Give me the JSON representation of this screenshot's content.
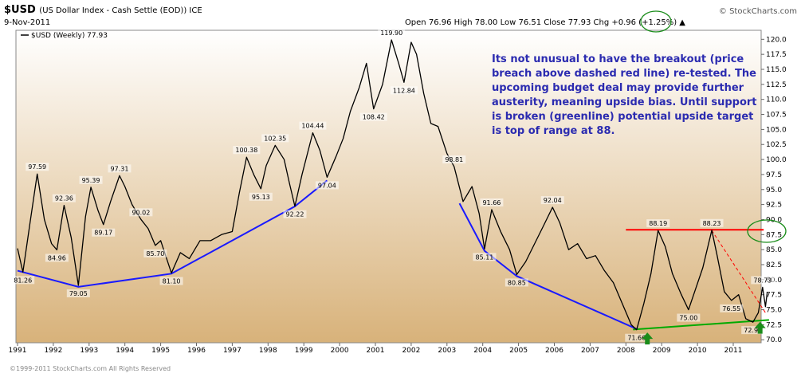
{
  "header": {
    "symbol": "$USD",
    "description": "(US Dollar Index - Cash Settle (EOD)) ICE",
    "date": "9-Nov-2011",
    "ohlc": "Open 76.96  High 78.00  Low 76.51  Close 77.93  Chg +0.96 (+1.25%) ▲",
    "brand": "© StockCharts.com"
  },
  "footer": {
    "copyright": "©1999-2011 StockCharts.com All Rights Reserved"
  },
  "chart_data": {
    "type": "line",
    "legend": "$USD (Weekly) 77.93",
    "ylim": [
      69.5,
      121.5
    ],
    "xlim": [
      1991.0,
      2012.2
    ],
    "x_ticks": [
      "1991",
      "1992",
      "1993",
      "1994",
      "1995",
      "1996",
      "1997",
      "1998",
      "1999",
      "2000",
      "2001",
      "2002",
      "2003",
      "2004",
      "2005",
      "2006",
      "2007",
      "2008",
      "2009",
      "2010",
      "2011"
    ],
    "y_ticks": [
      "70.0",
      "72.5",
      "75.0",
      "77.5",
      "80.0",
      "82.5",
      "85.0",
      "87.5",
      "90.0",
      "92.5",
      "95.0",
      "97.5",
      "100.0",
      "102.5",
      "105.0",
      "107.5",
      "110.0",
      "112.5",
      "115.0",
      "117.5",
      "120.0"
    ],
    "series": [
      {
        "points": [
          [
            1991.0,
            85.2
          ],
          [
            1991.15,
            81.26
          ],
          [
            1991.35,
            89.5
          ],
          [
            1991.55,
            97.59
          ],
          [
            1991.75,
            90.0
          ],
          [
            1991.95,
            86.0
          ],
          [
            1992.1,
            84.96
          ],
          [
            1992.3,
            92.36
          ],
          [
            1992.5,
            87.0
          ],
          [
            1992.7,
            79.05
          ],
          [
            1992.9,
            90.5
          ],
          [
            1993.05,
            95.39
          ],
          [
            1993.25,
            91.5
          ],
          [
            1993.4,
            89.17
          ],
          [
            1993.6,
            93.0
          ],
          [
            1993.85,
            97.31
          ],
          [
            1994.0,
            95.5
          ],
          [
            1994.2,
            92.5
          ],
          [
            1994.45,
            90.02
          ],
          [
            1994.65,
            88.5
          ],
          [
            1994.85,
            85.7
          ],
          [
            1995.0,
            86.5
          ],
          [
            1995.3,
            81.1
          ],
          [
            1995.55,
            84.5
          ],
          [
            1995.8,
            83.5
          ],
          [
            1996.1,
            86.5
          ],
          [
            1996.4,
            86.5
          ],
          [
            1996.7,
            87.5
          ],
          [
            1997.0,
            88.0
          ],
          [
            1997.2,
            94.5
          ],
          [
            1997.4,
            100.38
          ],
          [
            1997.6,
            97.5
          ],
          [
            1997.8,
            95.13
          ],
          [
            1997.95,
            99.0
          ],
          [
            1998.2,
            102.35
          ],
          [
            1998.45,
            100.0
          ],
          [
            1998.6,
            96.0
          ],
          [
            1998.75,
            92.22
          ],
          [
            1998.95,
            97.5
          ],
          [
            1999.25,
            104.44
          ],
          [
            1999.45,
            101.5
          ],
          [
            1999.65,
            97.04
          ],
          [
            1999.9,
            100.5
          ],
          [
            2000.1,
            103.5
          ],
          [
            2000.3,
            108.0
          ],
          [
            2000.55,
            112.0
          ],
          [
            2000.75,
            116.0
          ],
          [
            2000.95,
            108.42
          ],
          [
            2001.2,
            112.5
          ],
          [
            2001.45,
            119.9
          ],
          [
            2001.65,
            116.0
          ],
          [
            2001.8,
            112.84
          ],
          [
            2002.0,
            119.5
          ],
          [
            2002.15,
            117.5
          ],
          [
            2002.35,
            111.0
          ],
          [
            2002.55,
            106.0
          ],
          [
            2002.75,
            105.5
          ],
          [
            2003.0,
            101.0
          ],
          [
            2003.2,
            98.81
          ],
          [
            2003.45,
            93.0
          ],
          [
            2003.7,
            95.5
          ],
          [
            2003.9,
            91.0
          ],
          [
            2004.05,
            85.11
          ],
          [
            2004.25,
            91.66
          ],
          [
            2004.5,
            88.0
          ],
          [
            2004.75,
            85.0
          ],
          [
            2004.95,
            80.85
          ],
          [
            2005.2,
            83.0
          ],
          [
            2005.45,
            86.0
          ],
          [
            2005.7,
            89.0
          ],
          [
            2005.95,
            92.04
          ],
          [
            2006.15,
            89.5
          ],
          [
            2006.4,
            85.0
          ],
          [
            2006.65,
            86.0
          ],
          [
            2006.9,
            83.5
          ],
          [
            2007.15,
            84.0
          ],
          [
            2007.4,
            81.5
          ],
          [
            2007.65,
            79.5
          ],
          [
            2007.9,
            76.0
          ],
          [
            2008.15,
            72.5
          ],
          [
            2008.3,
            71.66
          ],
          [
            2008.5,
            76.0
          ],
          [
            2008.7,
            81.0
          ],
          [
            2008.9,
            88.19
          ],
          [
            2009.1,
            85.5
          ],
          [
            2009.3,
            81.0
          ],
          [
            2009.55,
            77.5
          ],
          [
            2009.75,
            75.0
          ],
          [
            2009.95,
            78.5
          ],
          [
            2010.15,
            82.0
          ],
          [
            2010.4,
            88.23
          ],
          [
            2010.55,
            84.0
          ],
          [
            2010.75,
            78.0
          ],
          [
            2010.95,
            76.55
          ],
          [
            2011.15,
            77.5
          ],
          [
            2011.35,
            73.5
          ],
          [
            2011.55,
            72.93
          ],
          [
            2011.7,
            74.5
          ],
          [
            2011.82,
            78.73
          ],
          [
            2011.9,
            75.5
          ],
          [
            2011.95,
            77.93
          ]
        ]
      }
    ],
    "point_labels": [
      {
        "x": 1991.15,
        "y": 81.26,
        "text": "81.26",
        "pos": "below"
      },
      {
        "x": 1991.55,
        "y": 97.59,
        "text": "97.59",
        "pos": "above"
      },
      {
        "x": 1992.1,
        "y": 84.96,
        "text": "84.96",
        "pos": "below"
      },
      {
        "x": 1992.3,
        "y": 92.36,
        "text": "92.36",
        "pos": "above"
      },
      {
        "x": 1992.7,
        "y": 79.05,
        "text": "79.05",
        "pos": "below"
      },
      {
        "x": 1993.05,
        "y": 95.39,
        "text": "95.39",
        "pos": "above"
      },
      {
        "x": 1993.4,
        "y": 89.17,
        "text": "89.17",
        "pos": "below"
      },
      {
        "x": 1993.85,
        "y": 97.31,
        "text": "97.31",
        "pos": "above"
      },
      {
        "x": 1994.45,
        "y": 90.02,
        "text": "90.02",
        "pos": "above"
      },
      {
        "x": 1994.85,
        "y": 85.7,
        "text": "85.70",
        "pos": "below"
      },
      {
        "x": 1995.3,
        "y": 81.1,
        "text": "81.10",
        "pos": "below"
      },
      {
        "x": 1997.4,
        "y": 100.38,
        "text": "100.38",
        "pos": "above"
      },
      {
        "x": 1997.8,
        "y": 95.13,
        "text": "95.13",
        "pos": "below"
      },
      {
        "x": 1998.2,
        "y": 102.35,
        "text": "102.35",
        "pos": "above"
      },
      {
        "x": 1998.75,
        "y": 92.22,
        "text": "92.22",
        "pos": "below"
      },
      {
        "x": 1999.25,
        "y": 104.44,
        "text": "104.44",
        "pos": "above"
      },
      {
        "x": 1999.65,
        "y": 97.04,
        "text": "97.04",
        "pos": "below"
      },
      {
        "x": 2000.95,
        "y": 108.42,
        "text": "108.42",
        "pos": "below"
      },
      {
        "x": 2001.45,
        "y": 119.9,
        "text": "119.90",
        "pos": "above"
      },
      {
        "x": 2001.8,
        "y": 112.84,
        "text": "112.84",
        "pos": "below"
      },
      {
        "x": 2003.2,
        "y": 98.81,
        "text": "98.81",
        "pos": "above"
      },
      {
        "x": 2004.05,
        "y": 85.11,
        "text": "85.11",
        "pos": "below"
      },
      {
        "x": 2004.25,
        "y": 91.66,
        "text": "91.66",
        "pos": "above"
      },
      {
        "x": 2004.95,
        "y": 80.85,
        "text": "80.85",
        "pos": "below"
      },
      {
        "x": 2005.95,
        "y": 92.04,
        "text": "92.04",
        "pos": "above"
      },
      {
        "x": 2008.3,
        "y": 71.66,
        "text": "71.66",
        "pos": "below"
      },
      {
        "x": 2008.9,
        "y": 88.19,
        "text": "88.19",
        "pos": "above"
      },
      {
        "x": 2009.75,
        "y": 75.0,
        "text": "75.00",
        "pos": "below"
      },
      {
        "x": 2010.4,
        "y": 88.23,
        "text": "88.23",
        "pos": "above"
      },
      {
        "x": 2010.95,
        "y": 76.55,
        "text": "76.55",
        "pos": "below"
      },
      {
        "x": 2011.55,
        "y": 72.93,
        "text": "72.93",
        "pos": "below"
      },
      {
        "x": 2011.82,
        "y": 78.73,
        "text": "78.73",
        "pos": "above"
      }
    ],
    "annotation": [
      "Its not unusual to have the breakout (price",
      "breach above dashed red line) re-tested. The",
      "upcoming budget deal may provide further",
      "austerity, meaning upside bias. Until support",
      "is broken (greenline) potential upside target",
      "is top of range at 88."
    ],
    "trendlines": [
      {
        "color": "#1a1aff",
        "points": [
          [
            1991.0,
            81.5
          ],
          [
            1992.7,
            78.8
          ],
          [
            1995.3,
            81.0
          ],
          [
            1998.75,
            92.2
          ],
          [
            1999.65,
            96.5
          ]
        ]
      },
      {
        "color": "#1a1aff",
        "points": [
          [
            2003.35,
            92.7
          ],
          [
            2004.05,
            84.8
          ],
          [
            2004.95,
            80.6
          ],
          [
            2008.3,
            71.8
          ]
        ]
      },
      {
        "color": "#00aa00",
        "points": [
          [
            2008.2,
            71.7
          ],
          [
            2012.0,
            73.3
          ]
        ]
      },
      {
        "color": "#ff0000",
        "points": [
          [
            2008.0,
            88.3
          ],
          [
            2011.85,
            88.3
          ]
        ]
      },
      {
        "color": "#ff0000",
        "dashed": true,
        "points": [
          [
            2010.4,
            88.2
          ],
          [
            2011.9,
            74.5
          ]
        ]
      }
    ],
    "arrows": [
      {
        "x": 2008.6,
        "y": 71.6,
        "color": "#1a8c1a"
      },
      {
        "x": 2011.75,
        "y": 73.4,
        "color": "#1a8c1a"
      }
    ],
    "highlight_ellipses": [
      {
        "target": "close-value",
        "color": "#1a8c1a"
      },
      {
        "target": "price-level",
        "y": 87.5,
        "color": "#1a8c1a"
      }
    ]
  },
  "colors": {
    "bg_top": "#ffffff",
    "bg_bottom": "#d8b27a",
    "line": "#000000",
    "annot": "#2b2bb0"
  }
}
